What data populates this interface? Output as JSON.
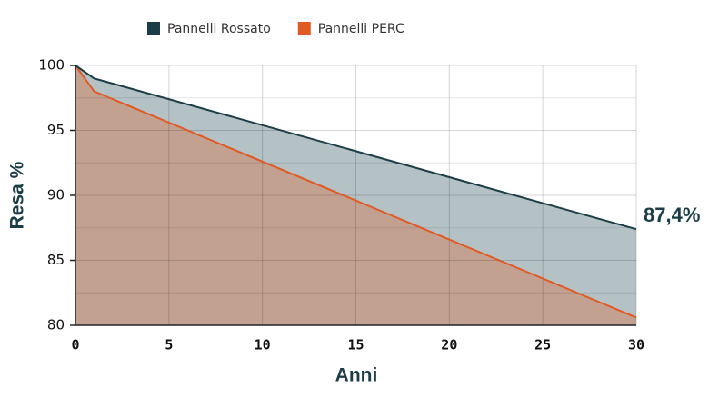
{
  "chart_data": {
    "type": "area",
    "x": [
      0,
      1,
      30
    ],
    "series": [
      {
        "name": "Pannelli Rossato",
        "color": "#1b3d47",
        "fill": "#b4c1c5",
        "values": [
          100,
          99,
          87.4
        ],
        "value_labels": [
          null,
          null,
          "87,4%"
        ]
      },
      {
        "name": "Pannelli PERC",
        "color": "#e05a24",
        "fill": "#c3a191",
        "values": [
          100,
          98,
          80.6
        ]
      }
    ],
    "xlabel": "Anni",
    "ylabel": "Resa %",
    "xlim": [
      0,
      30
    ],
    "xticks": [
      0,
      5,
      10,
      15,
      20,
      25,
      30
    ],
    "ylim": [
      80,
      100
    ],
    "yticks": [
      80,
      85,
      90,
      95,
      100
    ],
    "minor_yticks": [
      82.5,
      87.5,
      92.5,
      97.5
    ],
    "grid": true,
    "legend": "top"
  }
}
